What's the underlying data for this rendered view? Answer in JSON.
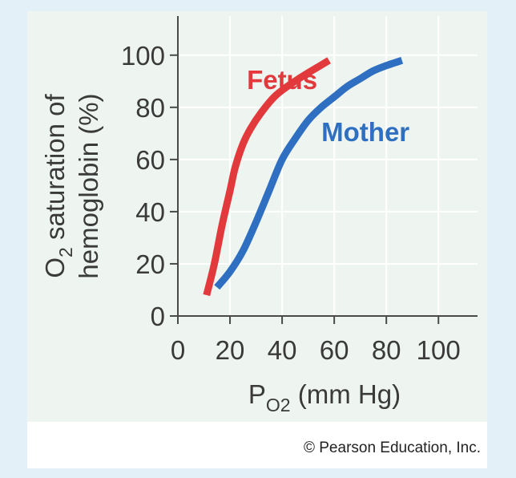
{
  "chart_data": {
    "type": "line",
    "xlabel": {
      "main": "P",
      "sub": "O2",
      "unit": "(mm Hg)"
    },
    "ylabel": {
      "line1_sub": "2",
      "line1_prefix": "O",
      "line1_rest": " saturation of",
      "line2": "hemoglobin (%)"
    },
    "xlim": [
      0,
      115
    ],
    "ylim": [
      0,
      115
    ],
    "x_ticks": [
      0,
      20,
      40,
      60,
      80,
      100
    ],
    "y_ticks": [
      0,
      20,
      40,
      60,
      80,
      100
    ],
    "grid": true,
    "series": [
      {
        "name": "Fetus",
        "color": "#e2393c",
        "x": [
          11,
          14,
          17,
          20,
          22,
          25,
          28,
          32,
          37,
          42,
          48,
          53,
          58
        ],
        "y": [
          8,
          20,
          35,
          48,
          57,
          66,
          72,
          78,
          84,
          88,
          92,
          95,
          98
        ]
      },
      {
        "name": "Mother",
        "color": "#2f6fc1",
        "x": [
          15,
          20,
          25,
          30,
          35,
          40,
          45,
          50,
          55,
          60,
          65,
          70,
          75,
          80,
          86
        ],
        "y": [
          11,
          17,
          25,
          36,
          48,
          60,
          68,
          75,
          80,
          84,
          88,
          91,
          94,
          96,
          98
        ]
      }
    ],
    "label_positions": {
      "Fetus": [
        40,
        87
      ],
      "Mother": [
        72,
        67
      ]
    }
  },
  "credit": "© Pearson Education, Inc.",
  "colors": {
    "grid": "#ffffff",
    "axis": "#4a4a4a"
  }
}
